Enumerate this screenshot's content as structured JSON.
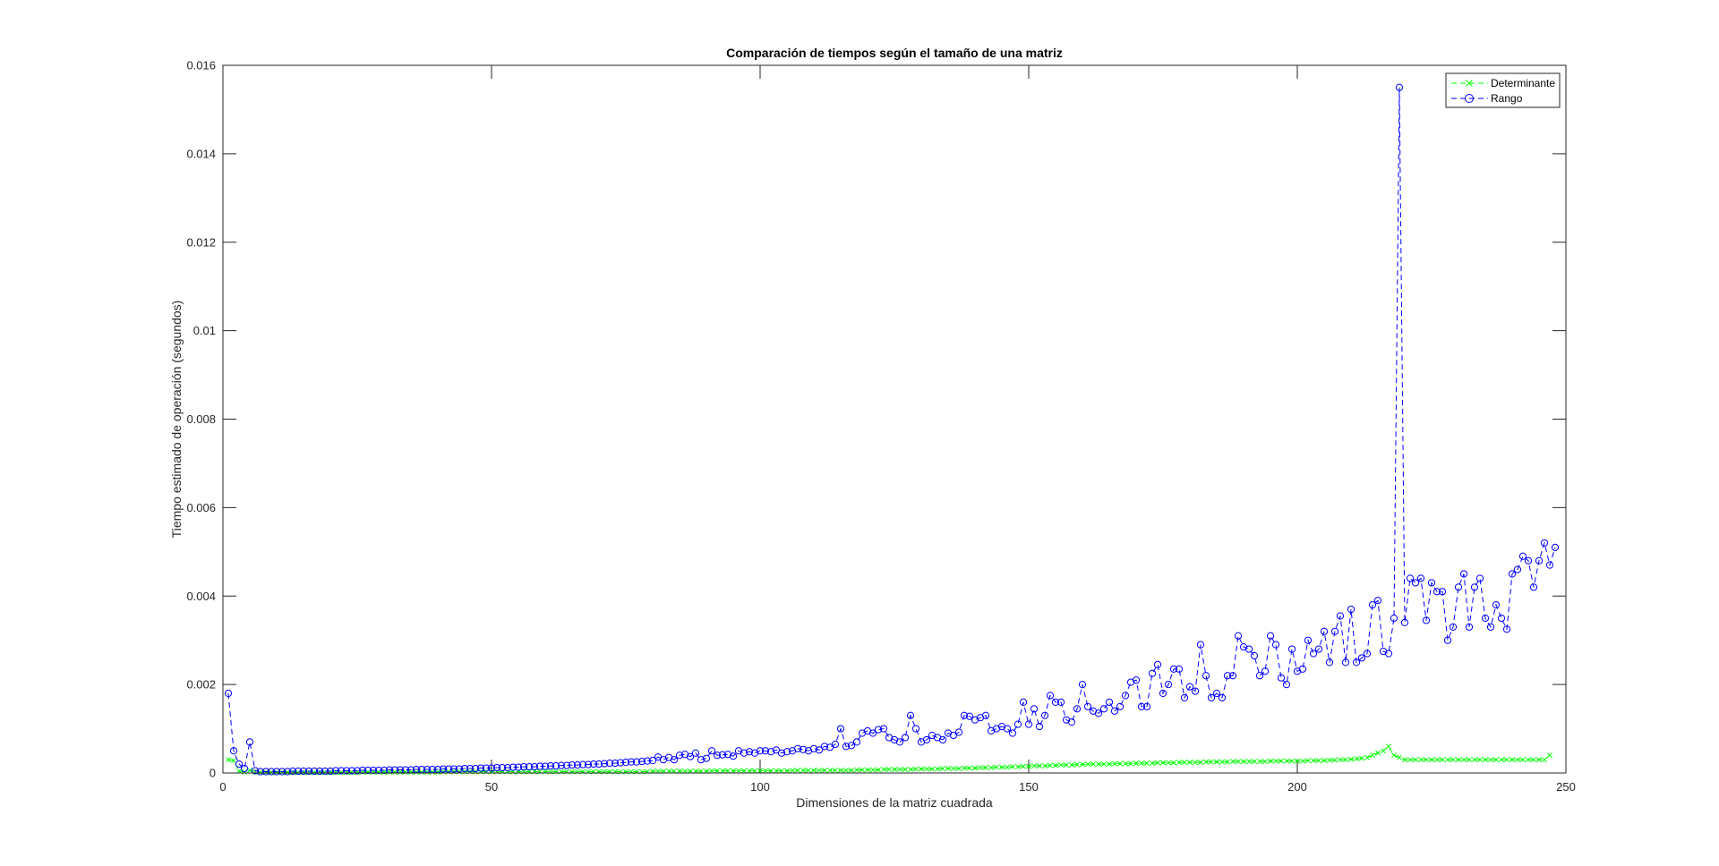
{
  "chart_data": {
    "type": "line",
    "title": "Comparación de tiempos según el tamaño de una matriz",
    "xlabel": "Dimensiones de la matriz cuadrada",
    "ylabel": "Tiempo estimado de operación  (segundos)",
    "xlim": [
      0,
      250
    ],
    "ylim": [
      0,
      0.016
    ],
    "xticks": [
      0,
      50,
      100,
      150,
      200,
      250
    ],
    "xtick_labels": [
      "0",
      "50",
      "100",
      "150",
      "200",
      "250"
    ],
    "yticks": [
      0,
      0.002,
      0.004,
      0.006,
      0.008,
      0.01,
      0.012,
      0.014,
      0.016
    ],
    "ytick_labels": [
      "0",
      "0.002",
      "0.004",
      "0.006",
      "0.008",
      "0.01",
      "0.012",
      "0.014",
      "0.016"
    ],
    "grid": false,
    "legend_position": "top-right",
    "x_start": 1,
    "x_step": 1,
    "series": [
      {
        "name": "Determinante",
        "color": "#00ff00",
        "marker": "x",
        "linestyle": "dashed",
        "values": [
          0.0003,
          0.00028,
          4e-05,
          2e-05,
          6e-05,
          2e-05,
          1e-05,
          1e-05,
          1e-05,
          1e-05,
          1e-05,
          1e-05,
          1e-05,
          1e-05,
          1e-05,
          1e-05,
          1e-05,
          1e-05,
          1e-05,
          1e-05,
          1e-05,
          1e-05,
          1e-05,
          1e-05,
          1e-05,
          2e-05,
          2e-05,
          2e-05,
          2e-05,
          2e-05,
          2e-05,
          2e-05,
          2e-05,
          2e-05,
          2e-05,
          2e-05,
          2e-05,
          2e-05,
          2e-05,
          2e-05,
          3e-05,
          3e-05,
          3e-05,
          3e-05,
          3e-05,
          3e-05,
          3e-05,
          3e-05,
          3e-05,
          3e-05,
          3e-05,
          3e-05,
          3e-05,
          3e-05,
          3e-05,
          3e-05,
          3e-05,
          3e-05,
          3e-05,
          3e-05,
          3e-05,
          3e-05,
          3e-05,
          3e-05,
          3e-05,
          3e-05,
          3e-05,
          3e-05,
          3e-05,
          3e-05,
          3e-05,
          3e-05,
          3e-05,
          3e-05,
          3e-05,
          3e-05,
          3e-05,
          3e-05,
          3e-05,
          4e-05,
          4e-05,
          4e-05,
          4e-05,
          4e-05,
          4e-05,
          4e-05,
          4e-05,
          4e-05,
          4e-05,
          4e-05,
          5e-05,
          5e-05,
          5e-05,
          5e-05,
          5e-05,
          5e-05,
          5e-05,
          5e-05,
          5e-05,
          5e-05,
          5e-05,
          5e-05,
          5e-05,
          5e-05,
          5e-05,
          6e-05,
          6e-05,
          6e-05,
          6e-05,
          6e-05,
          6e-05,
          6e-05,
          6e-05,
          6e-05,
          6e-05,
          6e-05,
          6e-05,
          7e-05,
          7e-05,
          7e-05,
          7e-05,
          7e-05,
          8e-05,
          8e-05,
          8e-05,
          8e-05,
          8e-05,
          8e-05,
          9e-05,
          9e-05,
          9e-05,
          9e-05,
          9e-05,
          0.0001,
          0.0001,
          0.0001,
          0.0001,
          0.00011,
          0.00011,
          0.00011,
          0.00012,
          0.00012,
          0.00012,
          0.00013,
          0.00013,
          0.00013,
          0.00014,
          0.00014,
          0.00015,
          0.00015,
          0.00016,
          0.00016,
          0.00016,
          0.00017,
          0.00017,
          0.00018,
          0.00018,
          0.00018,
          0.00019,
          0.00019,
          0.0002,
          0.0002,
          0.0002,
          0.0002,
          0.0002,
          0.00021,
          0.00021,
          0.00021,
          0.00021,
          0.00022,
          0.00022,
          0.00022,
          0.00022,
          0.00023,
          0.00023,
          0.00023,
          0.00023,
          0.00024,
          0.00024,
          0.00024,
          0.00024,
          0.00024,
          0.00025,
          0.00025,
          0.00025,
          0.00025,
          0.00025,
          0.00026,
          0.00026,
          0.00026,
          0.00026,
          0.00026,
          0.00026,
          0.00026,
          0.00027,
          0.00027,
          0.00027,
          0.00027,
          0.00027,
          0.00027,
          0.00027,
          0.00028,
          0.00028,
          0.00028,
          0.00028,
          0.00029,
          0.00029,
          0.0003,
          0.0003,
          0.00031,
          0.00032,
          0.00033,
          0.00035,
          0.0004,
          0.00045,
          0.0005,
          0.0006,
          0.0004,
          0.00035,
          0.0003,
          0.0003,
          0.0003,
          0.0003,
          0.0003,
          0.0003,
          0.0003,
          0.0003,
          0.0003,
          0.0003,
          0.0003,
          0.0003,
          0.0003,
          0.0003,
          0.0003,
          0.0003,
          0.0003,
          0.0003,
          0.0003,
          0.0003,
          0.0003,
          0.0003,
          0.0003,
          0.0003,
          0.0003,
          0.0003,
          0.0003,
          0.0004
        ]
      },
      {
        "name": "Rango",
        "color": "#0000ff",
        "marker": "o",
        "linestyle": "dashed",
        "values": [
          0.0018,
          0.0005,
          0.0002,
          0.0001,
          0.0007,
          5e-05,
          3e-05,
          3e-05,
          3e-05,
          3e-05,
          3e-05,
          3e-05,
          4e-05,
          4e-05,
          4e-05,
          4e-05,
          4e-05,
          4e-05,
          4e-05,
          4e-05,
          5e-05,
          5e-05,
          5e-05,
          5e-05,
          5e-05,
          6e-05,
          6e-05,
          6e-05,
          6e-05,
          6e-05,
          7e-05,
          7e-05,
          7e-05,
          7e-05,
          7e-05,
          8e-05,
          8e-05,
          8e-05,
          8e-05,
          8e-05,
          9e-05,
          9e-05,
          9e-05,
          9e-05,
          0.0001,
          0.0001,
          0.0001,
          0.00011,
          0.00011,
          0.00011,
          0.00012,
          0.00012,
          0.00012,
          0.00013,
          0.00013,
          0.00014,
          0.00014,
          0.00014,
          0.00015,
          0.00015,
          0.00016,
          0.00016,
          0.00017,
          0.00017,
          0.00018,
          0.00018,
          0.00019,
          0.00019,
          0.0002,
          0.0002,
          0.00021,
          0.00022,
          0.00022,
          0.00023,
          0.00024,
          0.00025,
          0.00025,
          0.00026,
          0.00027,
          0.00028,
          0.00036,
          0.0003,
          0.00035,
          0.0003,
          0.0004,
          0.00042,
          0.00037,
          0.00045,
          0.0003,
          0.00033,
          0.0005,
          0.0004,
          0.00041,
          0.00042,
          0.00038,
          0.0005,
          0.00045,
          0.00048,
          0.00045,
          0.0005,
          0.0005,
          0.00048,
          0.00052,
          0.00045,
          0.00048,
          0.0005,
          0.00055,
          0.00053,
          0.0005,
          0.00055,
          0.00052,
          0.0006,
          0.00058,
          0.00065,
          0.001,
          0.0006,
          0.00062,
          0.0007,
          0.0009,
          0.00095,
          0.0009,
          0.00098,
          0.001,
          0.0008,
          0.00075,
          0.0007,
          0.0008,
          0.0013,
          0.001,
          0.0007,
          0.00075,
          0.00085,
          0.0008,
          0.00075,
          0.0009,
          0.00085,
          0.00092,
          0.0013,
          0.00128,
          0.0012,
          0.00125,
          0.0013,
          0.00095,
          0.001,
          0.00105,
          0.001,
          0.0009,
          0.0011,
          0.0016,
          0.0011,
          0.00145,
          0.00105,
          0.0013,
          0.00175,
          0.0016,
          0.0016,
          0.0012,
          0.00115,
          0.00145,
          0.002,
          0.0015,
          0.0014,
          0.00135,
          0.00145,
          0.0016,
          0.0014,
          0.0015,
          0.00175,
          0.00205,
          0.0021,
          0.0015,
          0.0015,
          0.00225,
          0.00245,
          0.0018,
          0.002,
          0.00235,
          0.00235,
          0.0017,
          0.00195,
          0.00185,
          0.0029,
          0.0022,
          0.0017,
          0.0018,
          0.0017,
          0.0022,
          0.0022,
          0.0031,
          0.00285,
          0.0028,
          0.00265,
          0.0022,
          0.0023,
          0.0031,
          0.0029,
          0.00215,
          0.002,
          0.0028,
          0.0023,
          0.00235,
          0.003,
          0.0027,
          0.0028,
          0.0032,
          0.0025,
          0.0032,
          0.00355,
          0.0025,
          0.0037,
          0.0025,
          0.0026,
          0.0027,
          0.0038,
          0.0039,
          0.00275,
          0.0027,
          0.0035,
          0.0155,
          0.0034,
          0.0044,
          0.0043,
          0.0044,
          0.00345,
          0.0043,
          0.0041,
          0.0041,
          0.003,
          0.0033,
          0.0042,
          0.0045,
          0.0033,
          0.0042,
          0.0044,
          0.0035,
          0.0033,
          0.0038,
          0.0035,
          0.00325,
          0.0045,
          0.0046,
          0.0049,
          0.0048,
          0.0042,
          0.0048,
          0.0052,
          0.0047,
          0.0051
        ]
      }
    ]
  }
}
